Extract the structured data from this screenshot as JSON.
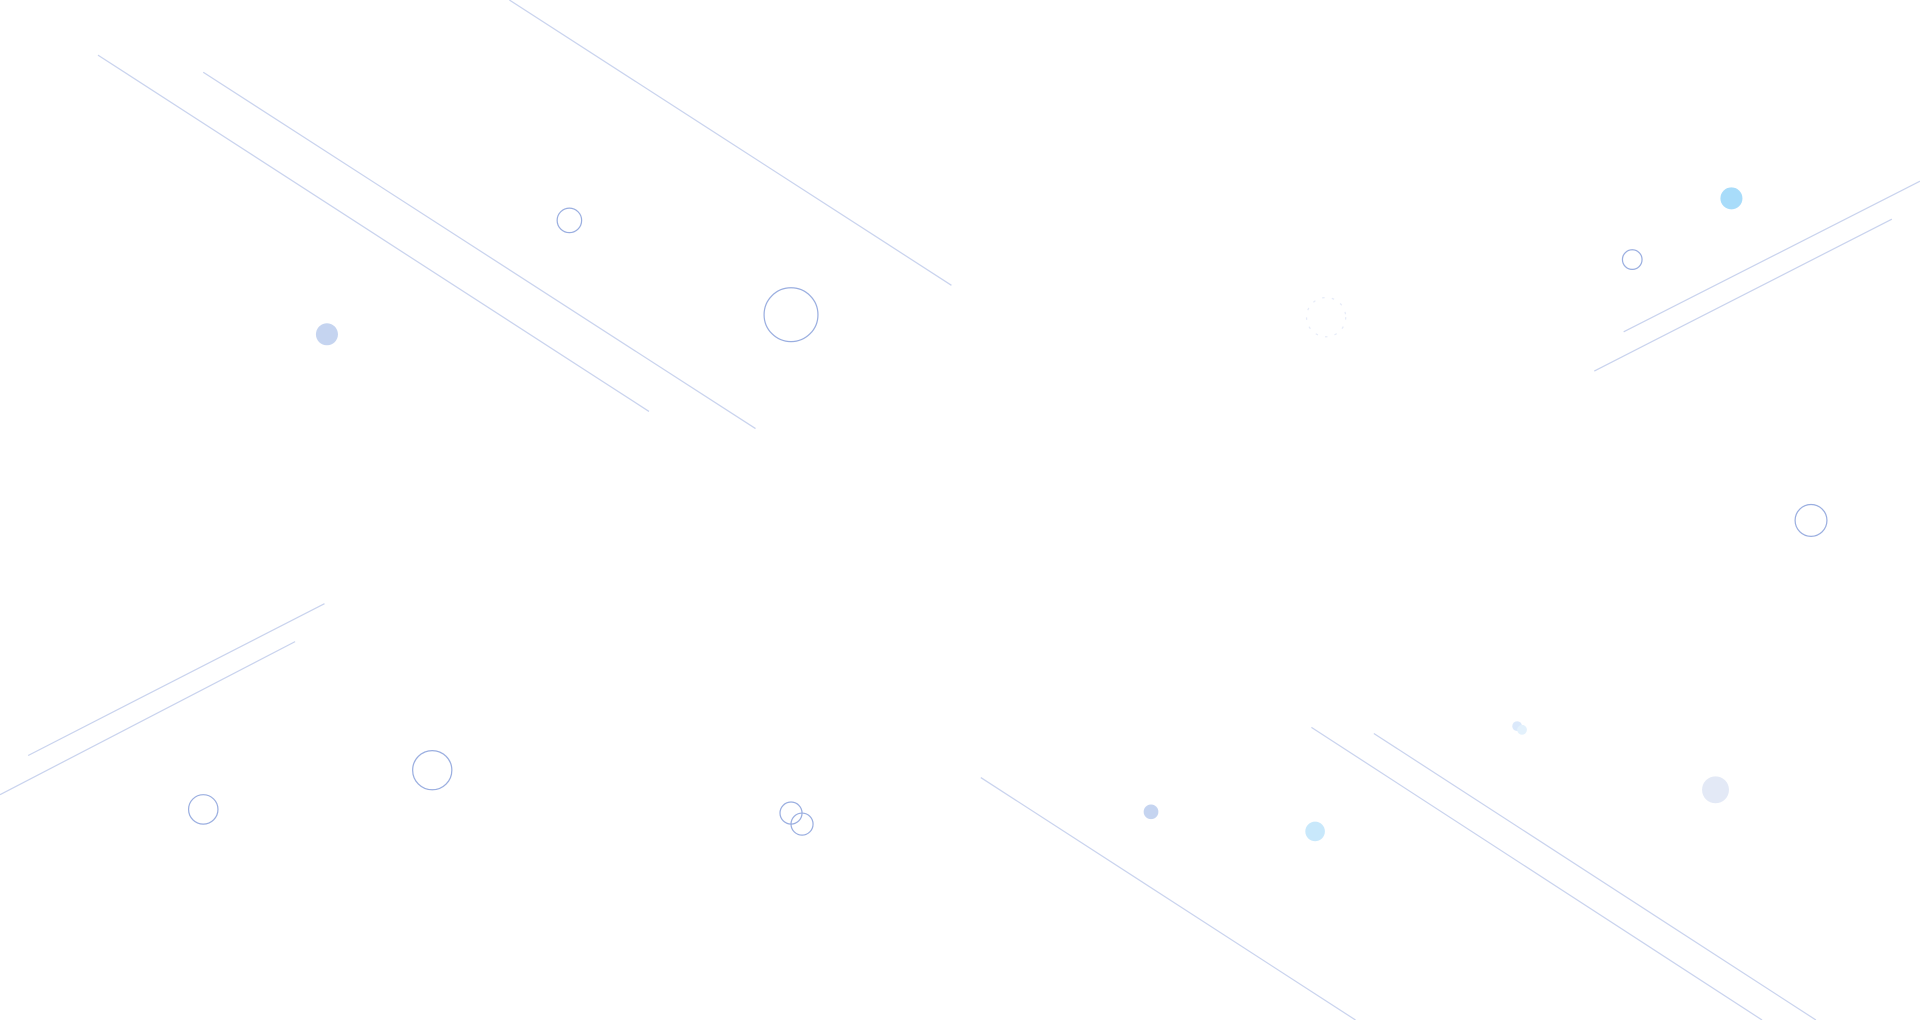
{
  "page": {
    "background": "#ffffff",
    "colors": {
      "line": "#c9d3ee",
      "ring": "#9aaee0",
      "dot_blue": "#c5d4f0",
      "dot_cyan": "#a8dcfa",
      "dot_light_cyan": "#c8e8fb",
      "dot_pale": "#e3e9f6"
    },
    "decoration": "particle-background"
  }
}
